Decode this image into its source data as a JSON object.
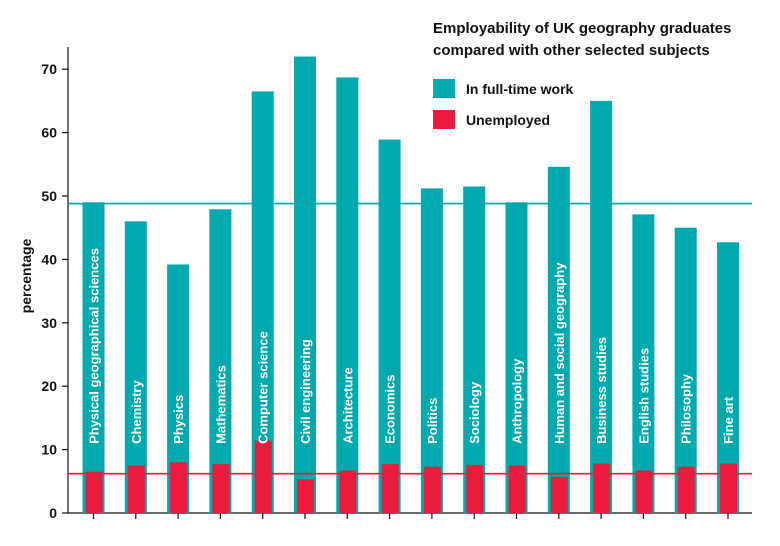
{
  "chart_data": {
    "type": "bar",
    "title_lines": [
      "Employability of UK geography graduates",
      "compared with other selected subjects"
    ],
    "ylabel": "percentage",
    "xlabel": "",
    "ylim": [
      0,
      75
    ],
    "yticks": [
      0,
      10,
      20,
      30,
      40,
      50,
      60,
      70
    ],
    "categories": [
      "Physical geographical sciences",
      "Chemistry",
      "Physics",
      "Mathematics",
      "Computer science",
      "Civil engineering",
      "Architecture",
      "Economics",
      "Politics",
      "Sociology",
      "Anthropology",
      "Human and social geography",
      "Business studies",
      "English studies",
      "Philosophy",
      "Fine art"
    ],
    "series": [
      {
        "name": "In full-time work",
        "color": "#00a9ae",
        "values": [
          49,
          46,
          39.2,
          47.9,
          66.5,
          72,
          68.7,
          58.9,
          51.2,
          51.5,
          49,
          54.6,
          65,
          47.1,
          45,
          42.7
        ]
      },
      {
        "name": "Unemployed",
        "color": "#ea1c3c",
        "values": [
          6.5,
          7.5,
          8,
          7.7,
          11.4,
          5.3,
          6.7,
          7.7,
          7.3,
          7.6,
          7.5,
          5.7,
          7.8,
          6.7,
          7.3,
          7.8
        ]
      }
    ],
    "reference_lines": [
      {
        "series": "In full-time work",
        "value": 48.8,
        "color": "#00a9ae"
      },
      {
        "series": "Unemployed",
        "value": 6.2,
        "color": "#ea1c3c"
      }
    ],
    "legend_position": "top-right",
    "grid": false
  }
}
